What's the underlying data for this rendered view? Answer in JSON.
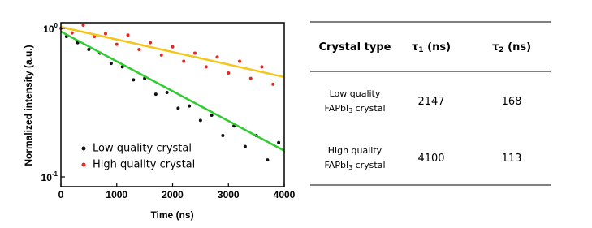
{
  "chart_data": {
    "type": "scatter",
    "xlabel": "Time (ns)",
    "ylabel": "Normalized intensity (a.u.)",
    "xlim": [
      0,
      4000
    ],
    "xticks": [
      0,
      1000,
      2000,
      3000,
      4000
    ],
    "ylim": [
      0.086,
      1.09
    ],
    "log_y": true,
    "yticks": [
      {
        "value": 1,
        "label": "10",
        "exponent": "0"
      },
      {
        "value": 0.1,
        "label": "10",
        "exponent": "-1"
      }
    ],
    "series": [
      {
        "name": "High quality crystal",
        "color": "#e8261f",
        "x": [
          0,
          200,
          400,
          600,
          800,
          1000,
          1200,
          1400,
          1600,
          1800,
          2000,
          2200,
          2400,
          2600,
          2800,
          3000,
          3200,
          3400,
          3600,
          3800
        ],
        "values": [
          1.0,
          0.93,
          1.05,
          0.88,
          0.92,
          0.78,
          0.9,
          0.72,
          0.8,
          0.66,
          0.75,
          0.6,
          0.68,
          0.55,
          0.64,
          0.5,
          0.6,
          0.46,
          0.55,
          0.42
        ]
      },
      {
        "name": "Low quality crystal",
        "color": "#111111",
        "x": [
          100,
          300,
          500,
          700,
          900,
          1100,
          1300,
          1500,
          1700,
          1900,
          2100,
          2300,
          2500,
          2700,
          2900,
          3100,
          3300,
          3500,
          3700,
          3900
        ],
        "values": [
          0.88,
          0.8,
          0.72,
          0.68,
          0.58,
          0.55,
          0.45,
          0.46,
          0.36,
          0.37,
          0.29,
          0.3,
          0.24,
          0.26,
          0.19,
          0.22,
          0.16,
          0.19,
          0.13,
          0.17
        ]
      }
    ],
    "fits": [
      {
        "color": "#f5c518",
        "x": [
          0,
          4000
        ],
        "values": [
          1.02,
          0.47
        ]
      },
      {
        "color": "#2ecc2e",
        "x": [
          0,
          4000
        ],
        "values": [
          0.95,
          0.15
        ]
      }
    ]
  },
  "table": {
    "header": [
      {
        "text": "Crystal type"
      },
      {
        "text": "τ",
        "sub": "1",
        "rest": " (ns)"
      },
      {
        "text": "τ",
        "sub": "2",
        "rest": " (ns)"
      }
    ],
    "rows": [
      [
        {
          "line1": "Low quality",
          "text": "FAPbI",
          "sub": "3",
          "rest": " crystal"
        },
        {
          "text": "2147"
        },
        {
          "text": "168"
        }
      ],
      [
        {
          "line1": "High quality",
          "text": "FAPbI",
          "sub": "3",
          "rest": " crystal"
        },
        {
          "text": "4100"
        },
        {
          "text": "113"
        }
      ]
    ]
  }
}
